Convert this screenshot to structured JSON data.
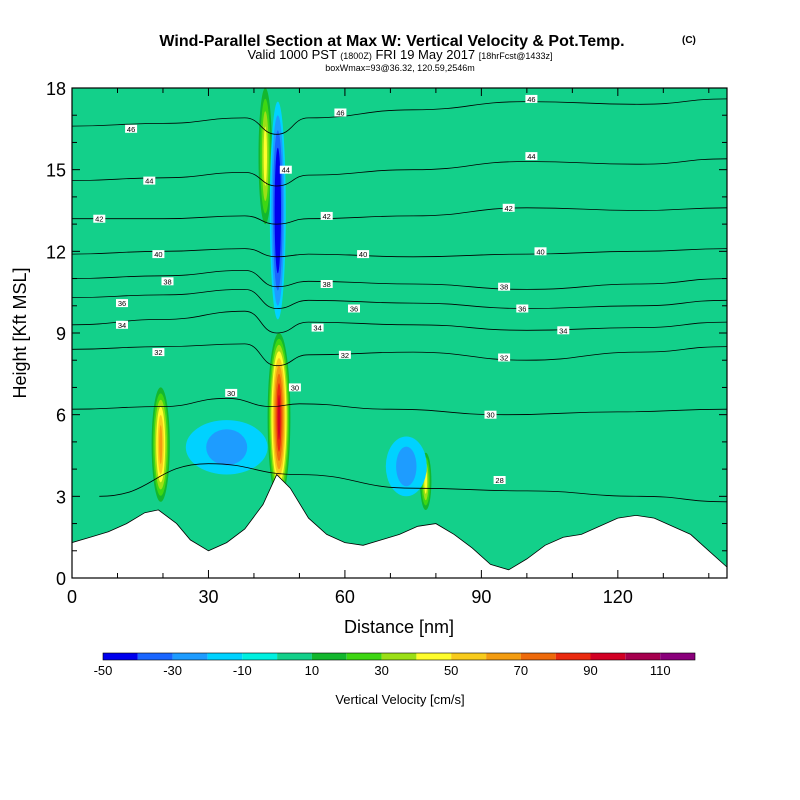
{
  "header": {
    "title_main": "Wind-Parallel Section at Max W: Vertical Velocity & Pot.Temp.",
    "title_mark": "(C)",
    "valid_prefix": "Valid 1000 PST",
    "valid_utc": "(1800Z)",
    "valid_date": "FRI 19 May 2017",
    "forecast_tag": "[18hrFcst@1433z]",
    "wmax_info": "boxWmax=93@36.32, 120.59,2546m"
  },
  "chart_data": {
    "type": "heatmap",
    "xlabel": "Distance [nm]",
    "ylabel": "Height [Kft MSL]",
    "xlim": [
      0,
      144
    ],
    "ylim": [
      0,
      18
    ],
    "x_ticks": [
      "0",
      "30",
      "60",
      "90",
      "120"
    ],
    "x_tick_values": [
      0,
      30,
      60,
      90,
      120
    ],
    "y_ticks": [
      "0",
      "3",
      "6",
      "9",
      "12",
      "15",
      "18"
    ],
    "y_tick_values": [
      0,
      3,
      6,
      9,
      12,
      15,
      18
    ],
    "colorbar": {
      "label": "Vertical Velocity [cm/s]",
      "bounds": [
        -50,
        -40,
        -30,
        -20,
        -10,
        0,
        10,
        20,
        30,
        40,
        50,
        60,
        70,
        80,
        90,
        100,
        110,
        120
      ],
      "colors": [
        "#0000ee",
        "#1a66ff",
        "#1e9cff",
        "#00d2ff",
        "#00f0e0",
        "#13d08a",
        "#13b72e",
        "#3ed613",
        "#9bdf16",
        "#fffd2c",
        "#f8cb1c",
        "#f39c11",
        "#ee6a0b",
        "#ea2a0f",
        "#d20024",
        "#a6004e",
        "#8a007b"
      ],
      "tick_labels": [
        "-50",
        "-30",
        "-10",
        "10",
        "30",
        "50",
        "70",
        "90",
        "110"
      ],
      "tick_values": [
        -50,
        -30,
        -10,
        10,
        30,
        50,
        70,
        90,
        110
      ]
    },
    "background_color": "#13d08a",
    "updraft_regions": [
      {
        "x": [
          43,
          48
        ],
        "y": [
          2.8,
          9.0
        ],
        "w_max": 93
      },
      {
        "x": [
          17.5,
          21.5
        ],
        "y": [
          2.8,
          7.0
        ],
        "w_max": 55
      },
      {
        "x": [
          76.5,
          79
        ],
        "y": [
          2.5,
          4.6
        ],
        "w_max": 40
      },
      {
        "x": [
          41,
          44
        ],
        "y": [
          13,
          18
        ],
        "w_max": 40
      }
    ],
    "downdraft_regions": [
      {
        "x": [
          43.5,
          47
        ],
        "y": [
          9.5,
          17.5
        ],
        "w_min": -50
      },
      {
        "x": [
          25,
          43
        ],
        "y": [
          3.8,
          5.8
        ],
        "w_min": -15
      },
      {
        "x": [
          69,
          78
        ],
        "y": [
          3,
          5.2
        ],
        "w_min": -15
      }
    ],
    "terrain_kft": {
      "x": [
        0,
        4,
        8,
        12,
        16,
        19,
        23,
        26,
        30,
        34,
        38,
        42,
        45,
        48,
        52,
        56,
        60,
        64,
        68,
        72,
        76,
        80,
        84,
        88,
        92,
        96,
        100,
        104,
        108,
        112,
        116,
        120,
        124,
        128,
        132,
        136,
        140,
        144
      ],
      "y": [
        1.3,
        1.5,
        1.7,
        2.0,
        2.4,
        2.5,
        2.0,
        1.4,
        1.0,
        1.3,
        1.8,
        2.7,
        3.8,
        3.3,
        2.2,
        1.6,
        1.3,
        1.2,
        1.4,
        1.6,
        1.9,
        2.0,
        1.6,
        1.1,
        0.5,
        0.3,
        0.7,
        1.2,
        1.5,
        1.6,
        1.9,
        2.2,
        2.3,
        2.2,
        1.9,
        1.6,
        1.0,
        0.4
      ]
    },
    "theta_contours": [
      {
        "label": "28",
        "x": [
          6,
          30,
          50,
          75,
          100,
          125,
          144
        ],
        "y": [
          3.0,
          4.2,
          3.8,
          3.3,
          3.2,
          3.0,
          2.8
        ]
      },
      {
        "label": "30",
        "x": [
          0,
          20,
          34,
          44,
          50,
          70,
          95,
          120,
          144
        ],
        "y": [
          6.2,
          6.3,
          6.6,
          6.3,
          6.4,
          6.2,
          6.0,
          6.1,
          6.2
        ]
      },
      {
        "label": "32",
        "x": [
          0,
          20,
          38,
          45,
          52,
          75,
          100,
          125,
          144
        ],
        "y": [
          8.4,
          8.5,
          8.6,
          7.8,
          8.2,
          8.3,
          8.0,
          8.3,
          8.5
        ]
      },
      {
        "label": "34",
        "x": [
          0,
          20,
          38,
          45,
          52,
          75,
          100,
          125,
          144
        ],
        "y": [
          9.3,
          9.5,
          9.8,
          9.0,
          9.4,
          9.3,
          9.1,
          9.2,
          9.4
        ]
      },
      {
        "label": "36",
        "x": [
          0,
          20,
          38,
          45,
          52,
          75,
          100,
          125,
          144
        ],
        "y": [
          10.3,
          10.4,
          10.6,
          9.9,
          10.2,
          10.1,
          9.9,
          10.0,
          10.2
        ]
      },
      {
        "label": "38",
        "x": [
          0,
          20,
          38,
          45,
          52,
          75,
          100,
          125,
          144
        ],
        "y": [
          11.0,
          11.1,
          11.3,
          10.7,
          10.9,
          10.8,
          10.6,
          10.8,
          11.0
        ]
      },
      {
        "label": "40",
        "x": [
          0,
          20,
          38,
          45,
          52,
          75,
          100,
          125,
          144
        ],
        "y": [
          11.9,
          12.0,
          12.1,
          11.8,
          11.9,
          11.8,
          11.9,
          12.0,
          12.1
        ]
      },
      {
        "label": "42",
        "x": [
          0,
          20,
          38,
          45,
          52,
          75,
          100,
          125,
          144
        ],
        "y": [
          13.2,
          13.2,
          13.3,
          13.0,
          13.2,
          13.3,
          13.6,
          13.5,
          13.6
        ]
      },
      {
        "label": "44",
        "x": [
          0,
          20,
          38,
          45,
          52,
          75,
          100,
          125,
          144
        ],
        "y": [
          14.6,
          14.7,
          14.9,
          14.4,
          14.8,
          15.0,
          15.3,
          15.2,
          15.4
        ]
      },
      {
        "label": "46",
        "x": [
          0,
          20,
          38,
          45,
          52,
          75,
          100,
          125,
          144
        ],
        "y": [
          16.6,
          16.7,
          16.9,
          16.3,
          16.9,
          17.2,
          17.5,
          17.4,
          17.6
        ]
      }
    ],
    "contour_labels": [
      {
        "text": "46",
        "x": 13,
        "y": 16.5
      },
      {
        "text": "44",
        "x": 17,
        "y": 14.6
      },
      {
        "text": "42",
        "x": 6,
        "y": 13.2
      },
      {
        "text": "40",
        "x": 19,
        "y": 11.9
      },
      {
        "text": "38",
        "x": 21,
        "y": 10.9
      },
      {
        "text": "36",
        "x": 11,
        "y": 10.1
      },
      {
        "text": "34",
        "x": 11,
        "y": 9.3
      },
      {
        "text": "32",
        "x": 19,
        "y": 8.3
      },
      {
        "text": "30",
        "x": 35,
        "y": 6.8
      },
      {
        "text": "46",
        "x": 59,
        "y": 17.1
      },
      {
        "text": "44",
        "x": 47,
        "y": 15.0
      },
      {
        "text": "42",
        "x": 56,
        "y": 13.3
      },
      {
        "text": "40",
        "x": 64,
        "y": 11.9
      },
      {
        "text": "38",
        "x": 56,
        "y": 10.8
      },
      {
        "text": "36",
        "x": 62,
        "y": 9.9
      },
      {
        "text": "34",
        "x": 54,
        "y": 9.2
      },
      {
        "text": "32",
        "x": 60,
        "y": 8.2
      },
      {
        "text": "30",
        "x": 49,
        "y": 7.0
      },
      {
        "text": "46",
        "x": 101,
        "y": 17.6
      },
      {
        "text": "44",
        "x": 101,
        "y": 15.5
      },
      {
        "text": "42",
        "x": 96,
        "y": 13.6
      },
      {
        "text": "40",
        "x": 103,
        "y": 12.0
      },
      {
        "text": "38",
        "x": 95,
        "y": 10.7
      },
      {
        "text": "36",
        "x": 99,
        "y": 9.9
      },
      {
        "text": "34",
        "x": 108,
        "y": 9.1
      },
      {
        "text": "32",
        "x": 95,
        "y": 8.1
      },
      {
        "text": "30",
        "x": 92,
        "y": 6.0
      },
      {
        "text": "28",
        "x": 94,
        "y": 3.6
      }
    ]
  }
}
